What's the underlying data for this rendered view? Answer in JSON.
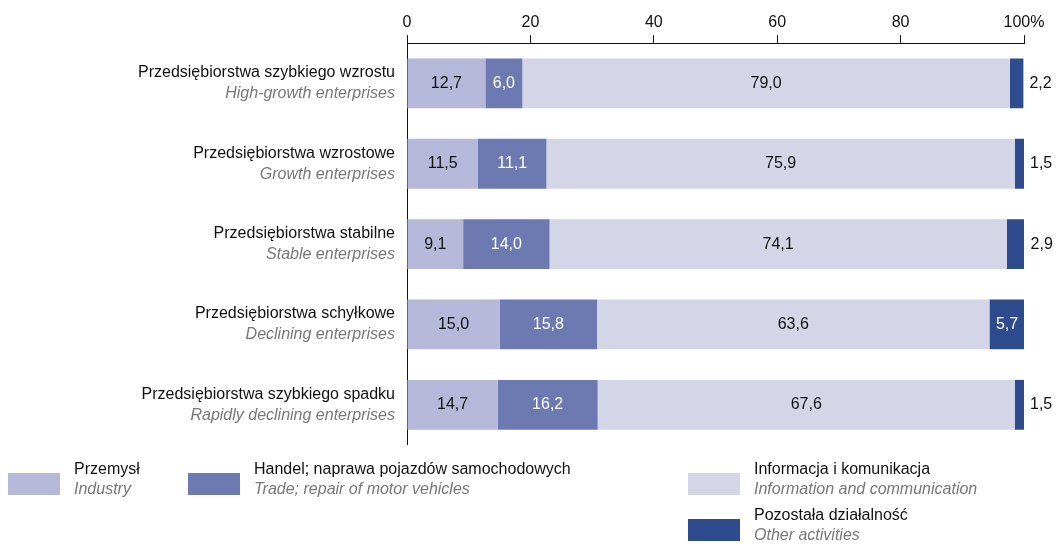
{
  "chart_data": {
    "type": "bar",
    "orientation": "horizontal",
    "stacked": true,
    "categories": [
      "Przedsiębiorstwa szybkiego wzrostu\nHigh-growth enterprises",
      "Przedsiębiorstwa wzrostowe\nGrowth enterprises",
      "Przedsiębiorstwa stabilne\nStable enterprises",
      "Przedsiębiorstwa schyłkowe\nDeclining enterprises",
      "Przedsiębiorstwa szybkiego spadku\nRapidly declining enterprises"
    ],
    "series": [
      {
        "name": "Przemysł\nIndustry",
        "color": "#b5b8d9",
        "values": [
          12.7,
          11.5,
          9.1,
          15.0,
          14.7
        ],
        "value_labels": [
          "12,7",
          "11,5",
          "9,1",
          "15,0",
          "14,7"
        ]
      },
      {
        "name": "Handel; naprawa pojazdów samochodowych\nTrade; repair of motor vehicles",
        "color": "#6d7ab2",
        "values": [
          6.0,
          11.1,
          14.0,
          15.8,
          16.2
        ],
        "value_labels": [
          "6,0",
          "11,1",
          "14,0",
          "15,8",
          "16,2"
        ]
      },
      {
        "name": "Informacja i komunikacja\nInformation and communication",
        "color": "#d4d6e8",
        "values": [
          79.0,
          75.9,
          74.1,
          63.6,
          67.6
        ],
        "value_labels": [
          "79,0",
          "75,9",
          "74,1",
          "63,6",
          "67,6"
        ]
      },
      {
        "name": "Pozostała działalność\nOther activities",
        "color": "#2e4b8d",
        "values": [
          2.2,
          1.5,
          2.9,
          5.7,
          1.5
        ],
        "value_labels": [
          "2,2",
          "1,5",
          "2,9",
          "5,7",
          "1,5"
        ]
      }
    ],
    "xlim": [
      0,
      100
    ],
    "xticks": [
      0,
      20,
      40,
      60,
      80,
      {
        "value": 100,
        "label": "100%"
      }
    ],
    "grid": false,
    "legend": "bottom"
  }
}
